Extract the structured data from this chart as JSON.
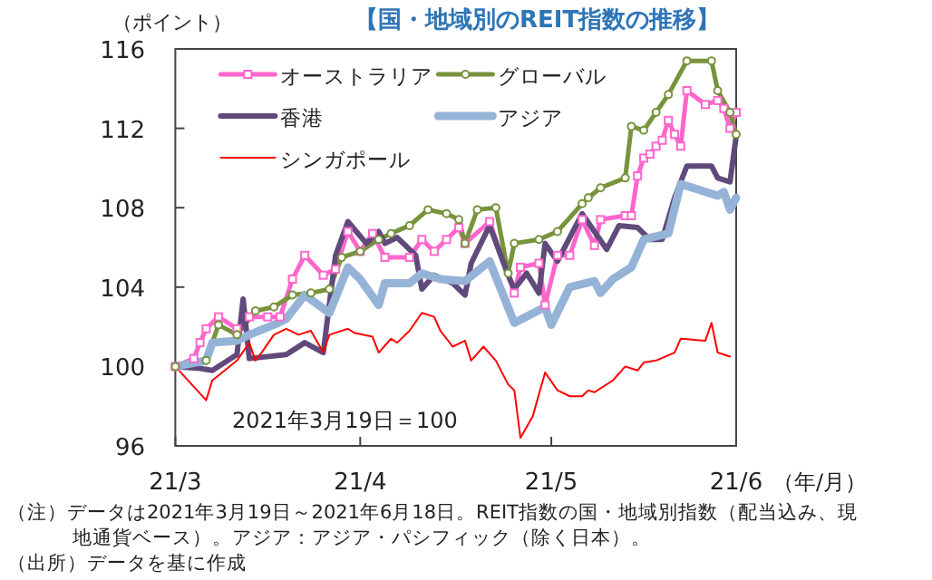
{
  "chart_data": {
    "type": "line",
    "title": "【国・地域別のREIT指数の推移】",
    "ylabel": "（ポイント）",
    "xlabel": "（年/月）",
    "xlim": [
      "2021-03-19",
      "2021-06-18"
    ],
    "xticks": [
      {
        "value": "2021-03-19",
        "label": "21/3"
      },
      {
        "value": "2021-04-18",
        "label": "21/4"
      },
      {
        "value": "2021-05-19",
        "label": "21/5"
      },
      {
        "value": "2021-06-18",
        "label": "21/6"
      }
    ],
    "ylim": [
      96,
      116
    ],
    "yticks": [
      96,
      100,
      104,
      108,
      112,
      116
    ],
    "legend": "top left",
    "line_style": "solid",
    "annotations": [
      "2021年3月19日＝100",
      "（注）データは2021年3月19日～2021年6月18日。REIT指数の国・地域別指数（配当込み、現地通貨ベース）。アジア：アジア・パシフィック（除く日本）。",
      "（出所）データを基に作成"
    ],
    "series": [
      {
        "name": "オーストラリア",
        "color": "#ff66cc",
        "marker": "square",
        "x": [
          "2021-03-19",
          "2021-03-22",
          "2021-03-23",
          "2021-03-24",
          "2021-03-26",
          "2021-03-29",
          "2021-03-31",
          "2021-04-03",
          "2021-04-05",
          "2021-04-07",
          "2021-04-09",
          "2021-04-12",
          "2021-04-14",
          "2021-04-16",
          "2021-04-18",
          "2021-04-20",
          "2021-04-22",
          "2021-04-26",
          "2021-04-28",
          "2021-04-30",
          "2021-05-02",
          "2021-05-04",
          "2021-05-05",
          "2021-05-09",
          "2021-05-13",
          "2021-05-14",
          "2021-05-17",
          "2021-05-18",
          "2021-05-20",
          "2021-05-22",
          "2021-05-24",
          "2021-05-26",
          "2021-05-27",
          "2021-05-31",
          "2021-06-01",
          "2021-06-02",
          "2021-06-03",
          "2021-06-04",
          "2021-06-05",
          "2021-06-06",
          "2021-06-07",
          "2021-06-08",
          "2021-06-09",
          "2021-06-10",
          "2021-06-13",
          "2021-06-15",
          "2021-06-16",
          "2021-06-17",
          "2021-06-18"
        ],
        "values": [
          100,
          100.4,
          101.2,
          101.9,
          102.5,
          101.9,
          102.5,
          102.5,
          102.5,
          104.4,
          105.6,
          104.6,
          104.9,
          106.8,
          105.8,
          106.7,
          105.5,
          105.5,
          106.4,
          105.8,
          106.4,
          107,
          106.2,
          107.3,
          103.7,
          105,
          105.2,
          103.1,
          105.6,
          105.6,
          107.4,
          106.1,
          107.4,
          107.6,
          107.6,
          109.6,
          110.5,
          110.7,
          111.1,
          111.4,
          112.4,
          111.7,
          111.1,
          113.9,
          113.2,
          113.4,
          113,
          112,
          112.8
        ]
      },
      {
        "name": "グローバル",
        "color": "#77933c",
        "marker": "circle",
        "x": [
          "2021-03-19",
          "2021-03-24",
          "2021-03-26",
          "2021-03-29",
          "2021-04-01",
          "2021-04-04",
          "2021-04-07",
          "2021-04-10",
          "2021-04-13",
          "2021-04-15",
          "2021-04-18",
          "2021-04-21",
          "2021-04-23",
          "2021-04-26",
          "2021-04-29",
          "2021-05-02",
          "2021-05-04",
          "2021-05-05",
          "2021-05-07",
          "2021-05-10",
          "2021-05-12",
          "2021-05-13",
          "2021-05-17",
          "2021-05-20",
          "2021-05-24",
          "2021-05-25",
          "2021-05-27",
          "2021-05-31",
          "2021-06-01",
          "2021-06-03",
          "2021-06-05",
          "2021-06-07",
          "2021-06-10",
          "2021-06-14",
          "2021-06-15",
          "2021-06-17",
          "2021-06-18"
        ],
        "values": [
          100,
          100.3,
          102.1,
          101.6,
          102.8,
          103,
          103.6,
          103.7,
          103.9,
          105.5,
          105.8,
          106.4,
          106.7,
          107.1,
          107.9,
          107.7,
          107.4,
          106.2,
          107.9,
          108,
          104.7,
          106.2,
          106.4,
          106.8,
          108.2,
          108.5,
          109,
          109.5,
          112.1,
          111.9,
          112.8,
          113.7,
          115.4,
          115.4,
          113.9,
          112.8,
          111.7
        ]
      },
      {
        "name": "香港",
        "color": "#604a7b",
        "marker": "none",
        "x": [
          "2021-03-19",
          "2021-03-23",
          "2021-03-25",
          "2021-03-29",
          "2021-03-30",
          "2021-03-31",
          "2021-04-06",
          "2021-04-09",
          "2021-04-12",
          "2021-04-14",
          "2021-04-16",
          "2021-04-19",
          "2021-04-21",
          "2021-04-22",
          "2021-04-24",
          "2021-04-27",
          "2021-04-28",
          "2021-04-30",
          "2021-05-03",
          "2021-05-05",
          "2021-05-06",
          "2021-05-09",
          "2021-05-12",
          "2021-05-13",
          "2021-05-15",
          "2021-05-17",
          "2021-05-18",
          "2021-05-20",
          "2021-05-24",
          "2021-05-26",
          "2021-05-28",
          "2021-05-30",
          "2021-06-02",
          "2021-06-04",
          "2021-06-06",
          "2021-06-08",
          "2021-06-10",
          "2021-06-14",
          "2021-06-15",
          "2021-06-17",
          "2021-06-18"
        ],
        "values": [
          100,
          99.9,
          99.8,
          100.6,
          103.4,
          100.4,
          100.6,
          101.2,
          100.7,
          105.6,
          107.3,
          106.2,
          106.8,
          106.2,
          106.5,
          105.6,
          103.9,
          104.6,
          104.2,
          103.6,
          105.2,
          107.1,
          104.6,
          103.9,
          104.7,
          103.7,
          106.2,
          105.3,
          107.7,
          106.8,
          105.9,
          107.1,
          107,
          106.4,
          106.4,
          108.5,
          110.1,
          110.1,
          109.5,
          109.3,
          111.6
        ]
      },
      {
        "name": "アジア",
        "color": "#95b3d7",
        "marker": "none",
        "x": [
          "2021-03-19",
          "2021-03-24",
          "2021-03-25",
          "2021-03-29",
          "2021-03-31",
          "2021-04-04",
          "2021-04-06",
          "2021-04-09",
          "2021-04-13",
          "2021-04-16",
          "2021-04-18",
          "2021-04-21",
          "2021-04-22",
          "2021-04-26",
          "2021-04-28",
          "2021-05-01",
          "2021-05-05",
          "2021-05-09",
          "2021-05-13",
          "2021-05-18",
          "2021-05-19",
          "2021-05-22",
          "2021-05-26",
          "2021-05-27",
          "2021-05-29",
          "2021-06-01",
          "2021-06-03",
          "2021-06-07",
          "2021-06-09",
          "2021-06-12",
          "2021-06-15",
          "2021-06-16",
          "2021-06-17",
          "2021-06-18"
        ],
        "values": [
          100,
          100.3,
          101.2,
          101.3,
          101.6,
          102.1,
          102.4,
          103.6,
          102.7,
          105,
          104.4,
          103.1,
          104.2,
          104.2,
          104.7,
          104.4,
          104.3,
          105.3,
          102.2,
          103,
          102.1,
          104,
          104.3,
          103.7,
          104.4,
          105,
          106.4,
          106.7,
          109.2,
          108.9,
          108.6,
          108.8,
          107.9,
          108.5
        ]
      },
      {
        "name": "シンガポール",
        "color": "#ff0000",
        "marker": "none",
        "x": [
          "2021-03-19",
          "2021-03-24",
          "2021-03-25",
          "2021-03-29",
          "2021-03-31",
          "2021-04-01",
          "2021-04-02",
          "2021-04-04",
          "2021-04-06",
          "2021-04-08",
          "2021-04-10",
          "2021-04-12",
          "2021-04-13",
          "2021-04-16",
          "2021-04-17",
          "2021-04-20",
          "2021-04-21",
          "2021-04-23",
          "2021-04-24",
          "2021-04-26",
          "2021-04-28",
          "2021-04-30",
          "2021-05-01",
          "2021-05-03",
          "2021-05-05",
          "2021-05-06",
          "2021-05-08",
          "2021-05-10",
          "2021-05-12",
          "2021-05-13",
          "2021-05-14",
          "2021-05-16",
          "2021-05-18",
          "2021-05-20",
          "2021-05-22",
          "2021-05-24",
          "2021-05-25",
          "2021-05-26",
          "2021-05-29",
          "2021-05-31",
          "2021-06-02",
          "2021-06-03",
          "2021-06-05",
          "2021-06-08",
          "2021-06-09",
          "2021-06-13",
          "2021-06-14",
          "2021-06-15",
          "2021-06-17"
        ],
        "values": [
          100,
          98.3,
          99.3,
          100.3,
          101.2,
          100.3,
          100.7,
          101.6,
          101.9,
          101.6,
          101.8,
          100.7,
          101.6,
          101.9,
          101.7,
          101.5,
          100.7,
          101.4,
          101.2,
          101.8,
          102.7,
          102.5,
          101.8,
          101,
          101.3,
          100.3,
          101,
          100.3,
          99.1,
          98.8,
          96.4,
          97.5,
          99.7,
          98.8,
          98.5,
          98.5,
          98.8,
          98.7,
          99.3,
          100,
          99.8,
          100.2,
          100.3,
          100.7,
          101.4,
          101.3,
          102.2,
          100.7,
          100.5
        ]
      }
    ]
  }
}
